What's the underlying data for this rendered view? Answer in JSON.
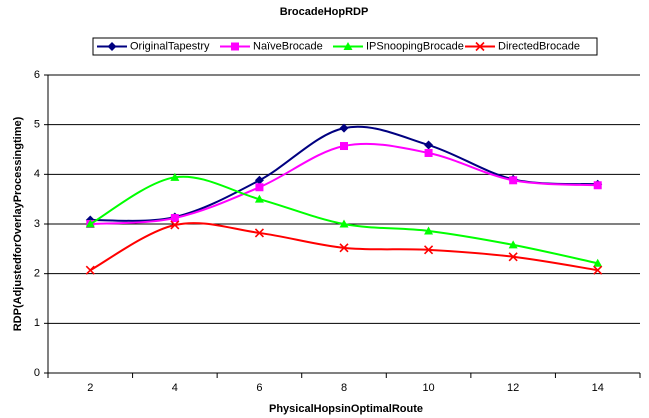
{
  "chart_data": {
    "type": "line",
    "title": "BrocadeHopRDP",
    "x_label": "PhysicalHopsinOptimalRoute",
    "y_label": "RDP(AdjustedforOverlayProcessingtime)",
    "categories": [
      "2",
      "4",
      "6",
      "8",
      "10",
      "12",
      "14"
    ],
    "ylim": [
      0,
      6
    ],
    "yticks": [
      0,
      1,
      2,
      3,
      4,
      5,
      6
    ],
    "grid": true,
    "smooth": true,
    "legend": "top",
    "series": [
      {
        "name": "OriginalTapestry",
        "color": "#000080",
        "marker": "diamond",
        "values": [
          3.08,
          3.14,
          3.88,
          4.93,
          4.59,
          3.9,
          3.8
        ]
      },
      {
        "name": "NaïveBrocade",
        "color": "#ff00ff",
        "marker": "square",
        "values": [
          3.0,
          3.12,
          3.74,
          4.57,
          4.43,
          3.88,
          3.78
        ]
      },
      {
        "name": "IPSnoopingBrocade",
        "color": "#00ff00",
        "marker": "triangle",
        "values": [
          3.0,
          3.94,
          3.5,
          3.0,
          2.86,
          2.58,
          2.21
        ]
      },
      {
        "name": "DirectedBrocade",
        "color": "#ff0000",
        "marker": "cross",
        "values": [
          2.07,
          2.98,
          2.82,
          2.52,
          2.48,
          2.34,
          2.07
        ]
      }
    ]
  }
}
